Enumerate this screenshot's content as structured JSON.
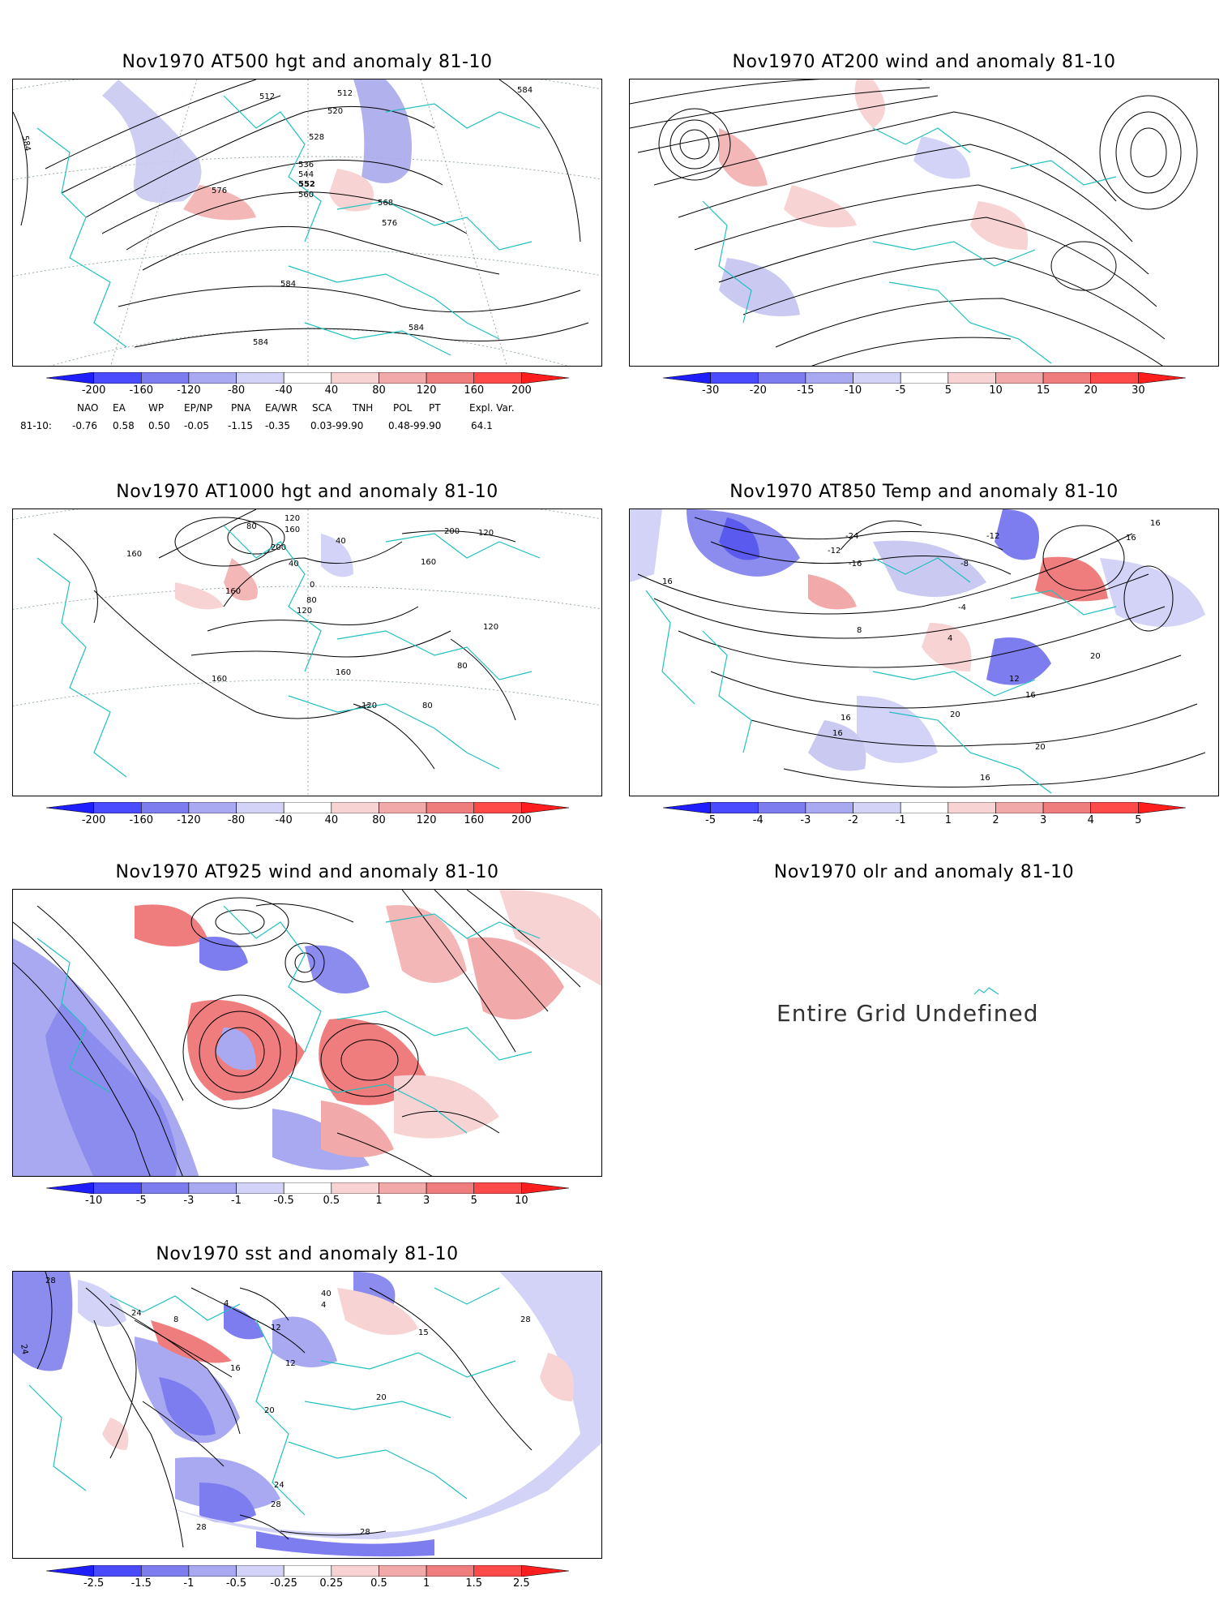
{
  "panels": {
    "p1": {
      "title": "Nov1970 AT500 hgt and anomaly 81-10",
      "contour_labels": [
        "512",
        "512",
        "520",
        "528",
        "536",
        "544",
        "552",
        "560",
        "568",
        "576",
        "576",
        "584",
        "584",
        "584",
        "584",
        "584"
      ]
    },
    "p2": {
      "title": "Nov1970 AT200 wind and anomaly 81-10"
    },
    "p3": {
      "title": "Nov1970 AT1000 hgt and anomaly 81-10",
      "contour_labels": [
        "120",
        "80",
        "160",
        "200",
        "160",
        "40",
        "40",
        "0",
        "80",
        "120",
        "200",
        "120",
        "160",
        "160",
        "160",
        "120",
        "80",
        "80",
        "120",
        "160"
      ]
    },
    "p4": {
      "title": "Nov1970 AT850 Temp and anomaly 81-10",
      "contour_labels": [
        "-24",
        "-12",
        "-12",
        "-16",
        "-8",
        "-4",
        "16",
        "16",
        "16",
        "8",
        "4",
        "12",
        "16",
        "20",
        "20",
        "16",
        "16",
        "20",
        "16"
      ]
    },
    "p5": {
      "title": "Nov1970 AT925 wind and anomaly 81-10"
    },
    "p6": {
      "title": "Nov1970 olr and anomaly 81-10",
      "message": "Entire Grid Undefined"
    },
    "p7": {
      "title": "Nov1970 sst and anomaly 81-10",
      "contour_labels": [
        "28",
        "24",
        "24",
        "8",
        "4",
        "16",
        "12",
        "12",
        "20",
        "20",
        "24",
        "28",
        "28",
        "28",
        "40",
        "4",
        "15",
        "28"
      ]
    }
  },
  "colorbars": {
    "hgt500": [
      "-200",
      "-160",
      "-120",
      "-80",
      "-40",
      "40",
      "80",
      "120",
      "160",
      "200"
    ],
    "wind200": [
      "-30",
      "-20",
      "-15",
      "-10",
      "-5",
      "5",
      "10",
      "15",
      "20",
      "30"
    ],
    "hgt1000": [
      "-200",
      "-160",
      "-120",
      "-80",
      "-40",
      "40",
      "80",
      "120",
      "160",
      "200"
    ],
    "temp850": [
      "-5",
      "-4",
      "-3",
      "-2",
      "-1",
      "1",
      "2",
      "3",
      "4",
      "5"
    ],
    "wind925": [
      "-10",
      "-5",
      "-3",
      "-1",
      "-0.5",
      "0.5",
      "1",
      "3",
      "5",
      "10"
    ],
    "sst": [
      "-2.5",
      "-1.5",
      "-1",
      "-0.5",
      "-0.25",
      "0.25",
      "0.5",
      "1",
      "1.5",
      "2.5"
    ]
  },
  "colorbar_colors": [
    "#1e1eff",
    "#4a4aff",
    "#7d7df0",
    "#a9a9f2",
    "#d3d3f7",
    "#ffffff",
    "#f8d3d3",
    "#f2a9a9",
    "#f07d7d",
    "#ff4a4a",
    "#ff1e1e"
  ],
  "teleconnections": {
    "headers": [
      "NAO",
      "EA",
      "WP",
      "EP/NP",
      "PNA",
      "EA/WR",
      "SCA",
      "TNH",
      "POL",
      "PT",
      "Expl. Var."
    ],
    "row_label": "81-10:",
    "values": [
      "-0.76",
      "0.58",
      "0.50",
      "-0.05",
      "-1.15",
      "-0.35",
      "0.03-99.90",
      "",
      "0.48-99.90",
      "",
      "64.1"
    ]
  }
}
